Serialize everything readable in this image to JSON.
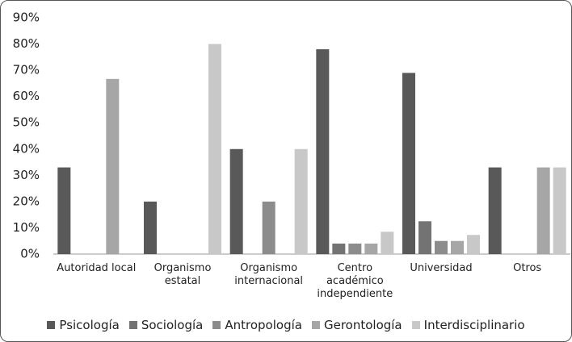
{
  "chart_data": {
    "type": "bar",
    "categories": [
      "Autoridad local",
      "Organismo estatal",
      "Organismo internacional",
      "Centro académico independiente",
      "Universidad",
      "Otros"
    ],
    "series": [
      {
        "name": "Psicología",
        "color": "#595959",
        "values": [
          33,
          20,
          40,
          78,
          69,
          33
        ]
      },
      {
        "name": "Sociología",
        "color": "#737373",
        "values": [
          0,
          0,
          0,
          4,
          12.5,
          0
        ]
      },
      {
        "name": "Antropología",
        "color": "#8c8c8c",
        "values": [
          0,
          0,
          20,
          4,
          5,
          0
        ]
      },
      {
        "name": "Gerontología",
        "color": "#a6a6a6",
        "values": [
          66.7,
          0,
          0,
          4,
          5,
          33
        ]
      },
      {
        "name": "Interdisciplinario",
        "color": "#c8c8c8",
        "values": [
          0,
          80,
          40,
          8.5,
          7.3,
          33
        ]
      }
    ],
    "ylim": [
      0,
      90
    ],
    "yticks": [
      {
        "value": 0,
        "label": "0%"
      },
      {
        "value": 10,
        "label": "10%"
      },
      {
        "value": 20,
        "label": "20%"
      },
      {
        "value": 30,
        "label": "30%"
      },
      {
        "value": 40,
        "label": "40%"
      },
      {
        "value": 50,
        "label": "50%"
      },
      {
        "value": 60,
        "label": "60%"
      },
      {
        "value": 70,
        "label": "70%"
      },
      {
        "value": 80,
        "label": "80%"
      },
      {
        "value": 90,
        "label": "90%"
      }
    ],
    "grid": false,
    "legend": "bottom"
  }
}
